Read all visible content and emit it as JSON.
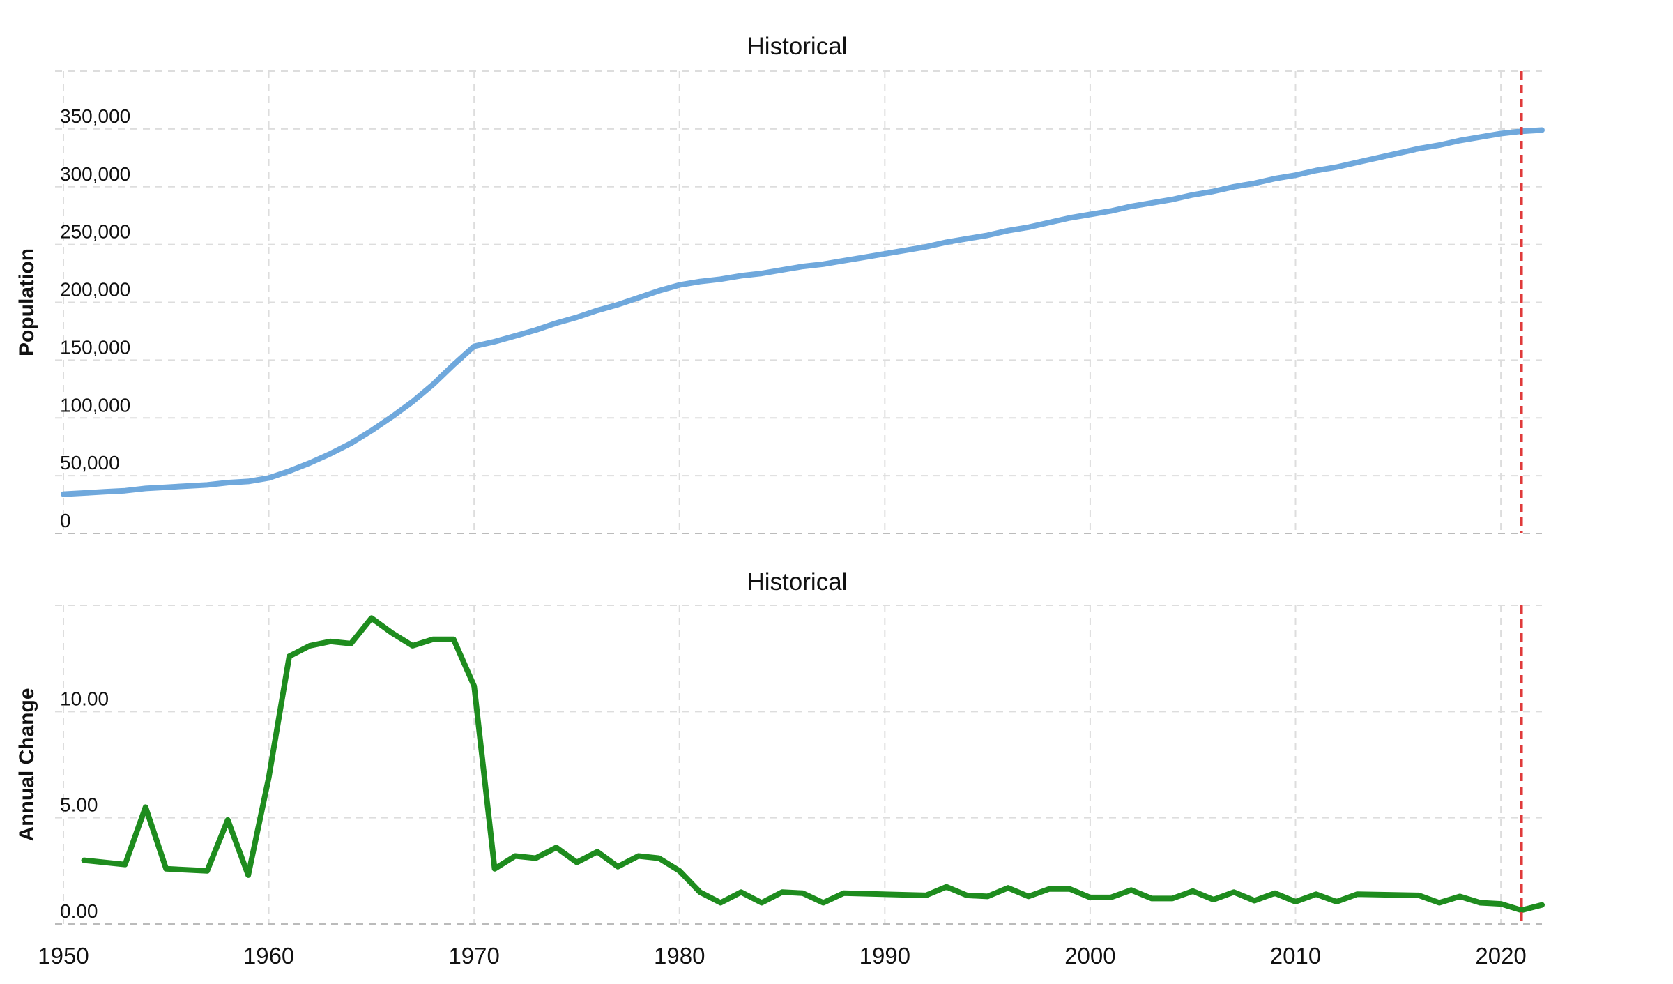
{
  "chart_data": [
    {
      "type": "line",
      "title": "Historical",
      "ylabel": "Population",
      "xlabel": "",
      "xlim": [
        1950,
        2022
      ],
      "ylim": [
        0,
        400000
      ],
      "y_ticks": [
        0,
        50000,
        100000,
        150000,
        200000,
        250000,
        300000,
        350000
      ],
      "y_tick_labels": [
        "0",
        "50,000",
        "100,000",
        "150,000",
        "200,000",
        "250,000",
        "300,000",
        "350,000"
      ],
      "grid": true,
      "line_color": "#6fa8dc",
      "marker_color": "#e03a3a",
      "marker_year": 2021.0,
      "series": [
        {
          "x": [
            1950,
            1951,
            1952,
            1953,
            1954,
            1955,
            1956,
            1957,
            1958,
            1959,
            1960,
            1961,
            1962,
            1963,
            1964,
            1965,
            1966,
            1967,
            1968,
            1969,
            1970,
            1971,
            1972,
            1973,
            1974,
            1975,
            1976,
            1977,
            1978,
            1979,
            1980,
            1981,
            1982,
            1983,
            1984,
            1985,
            1986,
            1987,
            1988,
            1989,
            1990,
            1991,
            1992,
            1993,
            1994,
            1995,
            1996,
            1997,
            1998,
            1999,
            2000,
            2001,
            2002,
            2003,
            2004,
            2005,
            2006,
            2007,
            2008,
            2009,
            2010,
            2011,
            2012,
            2013,
            2014,
            2015,
            2016,
            2017,
            2018,
            2019,
            2020,
            2021,
            2022
          ],
          "values": [
            34000,
            35000,
            36000,
            37000,
            39000,
            40000,
            41000,
            42000,
            44000,
            45000,
            48000,
            54000,
            61000,
            69000,
            78000,
            89000,
            101000,
            114000,
            129000,
            146000,
            162000,
            166000,
            171000,
            176000,
            182000,
            187000,
            193000,
            198000,
            204000,
            210000,
            215000,
            218000,
            220000,
            223000,
            225000,
            228000,
            231000,
            233000,
            236000,
            239000,
            242000,
            245000,
            248000,
            252000,
            255000,
            258000,
            262000,
            265000,
            269000,
            273000,
            276000,
            279000,
            283000,
            286000,
            289000,
            293000,
            296000,
            300000,
            303000,
            307000,
            310000,
            314000,
            317000,
            321000,
            325000,
            329000,
            333000,
            336000,
            340000,
            343000,
            346000,
            348000,
            349000
          ]
        }
      ]
    },
    {
      "type": "line",
      "title": "Historical",
      "ylabel": "Annual Change",
      "xlabel": "",
      "xlim": [
        1950,
        2022
      ],
      "ylim": [
        0,
        15
      ],
      "y_ticks": [
        0,
        5,
        10
      ],
      "y_tick_labels": [
        "0.00",
        "5.00",
        "10.00"
      ],
      "x_ticks": [
        1950,
        1960,
        1970,
        1980,
        1990,
        2000,
        2010,
        2020
      ],
      "x_tick_labels": [
        "1950",
        "1960",
        "1970",
        "1980",
        "1990",
        "2000",
        "2010",
        "2020"
      ],
      "grid": true,
      "line_color": "#1e8c1e",
      "marker_color": "#e03a3a",
      "marker_year": 2021.0,
      "series": [
        {
          "x": [
            1951,
            1953,
            1954,
            1955,
            1957,
            1958,
            1959,
            1960,
            1961,
            1962,
            1963,
            1964,
            1965,
            1966,
            1967,
            1968,
            1969,
            1970,
            1971,
            1972,
            1973,
            1974,
            1975,
            1976,
            1977,
            1978,
            1979,
            1980,
            1981,
            1982,
            1983,
            1984,
            1985,
            1986,
            1987,
            1988,
            1992,
            1993,
            1994,
            1995,
            1996,
            1997,
            1998,
            1999,
            2000,
            2001,
            2002,
            2003,
            2004,
            2005,
            2006,
            2007,
            2008,
            2009,
            2010,
            2011,
            2012,
            2013,
            2016,
            2017,
            2018,
            2019,
            2020,
            2021,
            2022
          ],
          "values": [
            3.0,
            2.8,
            5.5,
            2.6,
            2.5,
            4.9,
            2.3,
            6.9,
            12.6,
            13.1,
            13.3,
            13.2,
            14.4,
            13.7,
            13.1,
            13.4,
            13.4,
            11.2,
            2.6,
            3.2,
            3.1,
            3.6,
            2.9,
            3.4,
            2.7,
            3.2,
            3.1,
            2.5,
            1.5,
            1.0,
            1.5,
            1.0,
            1.5,
            1.45,
            1.0,
            1.45,
            1.35,
            1.75,
            1.35,
            1.3,
            1.7,
            1.3,
            1.65,
            1.65,
            1.25,
            1.25,
            1.6,
            1.2,
            1.2,
            1.55,
            1.15,
            1.5,
            1.1,
            1.45,
            1.05,
            1.4,
            1.05,
            1.4,
            1.35,
            1.0,
            1.3,
            1.0,
            0.95,
            0.65,
            0.9
          ]
        }
      ]
    }
  ]
}
